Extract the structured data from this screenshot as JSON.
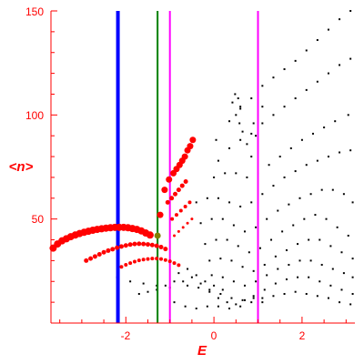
{
  "chart_data": {
    "type": "scatter",
    "title": "",
    "xlabel": "E",
    "ylabel": "<n>",
    "xlim": [
      -3.7,
      3.2
    ],
    "ylim": [
      0,
      150
    ],
    "x_ticks": [
      -2,
      0,
      2
    ],
    "y_ticks": [
      50,
      100,
      150
    ],
    "x_tick_labels": [
      "-2",
      "0",
      "2"
    ],
    "y_tick_labels": [
      "50",
      "100",
      "150"
    ],
    "axis_color": "#ff0000",
    "grid": false,
    "vertical_lines": [
      {
        "x": -2.18,
        "color": "#0000ff",
        "width": "thick"
      },
      {
        "x": -1.28,
        "color": "#008000",
        "width": "thin"
      },
      {
        "x": -1.0,
        "color": "#ff00ff",
        "width": "thin"
      },
      {
        "x": 1.0,
        "color": "#ff00ff",
        "width": "thin"
      }
    ],
    "marker": {
      "x": -1.28,
      "y": 42,
      "color": "#808000"
    },
    "red_series": [
      {
        "name": "",
        "color": "#ff0000",
        "points": [
          [
            -3.65,
            36
          ],
          [
            -3.55,
            38
          ],
          [
            -3.45,
            39.5
          ],
          [
            -3.35,
            40.5
          ],
          [
            -3.25,
            41.5
          ],
          [
            -3.15,
            42.3
          ],
          [
            -3.05,
            43
          ],
          [
            -2.95,
            43.6
          ],
          [
            -2.85,
            44.1
          ],
          [
            -2.75,
            44.6
          ],
          [
            -2.65,
            45
          ],
          [
            -2.55,
            45.3
          ],
          [
            -2.45,
            45.6
          ],
          [
            -2.35,
            45.8
          ],
          [
            -2.25,
            46
          ],
          [
            -2.15,
            46
          ],
          [
            -2.05,
            46
          ],
          [
            -1.95,
            45.8
          ],
          [
            -1.85,
            45.4
          ],
          [
            -1.75,
            45
          ],
          [
            -1.65,
            44.3
          ],
          [
            -1.55,
            43.3
          ],
          [
            -1.45,
            42.3
          ]
        ],
        "size": 4
      },
      {
        "name": "",
        "color": "#ff0000",
        "points": [
          [
            -2.9,
            30
          ],
          [
            -2.8,
            31
          ],
          [
            -2.7,
            32
          ],
          [
            -2.6,
            33
          ],
          [
            -2.5,
            34
          ],
          [
            -2.4,
            34.8
          ],
          [
            -2.3,
            35.5
          ],
          [
            -2.2,
            36.2
          ],
          [
            -2.1,
            36.8
          ],
          [
            -2.0,
            37.3
          ],
          [
            -1.9,
            37.7
          ],
          [
            -1.8,
            38
          ],
          [
            -1.7,
            38.1
          ],
          [
            -1.6,
            38
          ],
          [
            -1.5,
            37.8
          ],
          [
            -1.4,
            37.5
          ],
          [
            -1.3,
            37.1
          ],
          [
            -1.2,
            36.5
          ],
          [
            -1.1,
            35.6
          ]
        ],
        "size": 2.5
      },
      {
        "name": "",
        "color": "#ff0000",
        "points": [
          [
            -2.1,
            27
          ],
          [
            -2.0,
            28
          ],
          [
            -1.9,
            28.8
          ],
          [
            -1.8,
            29.5
          ],
          [
            -1.7,
            30.1
          ],
          [
            -1.6,
            30.5
          ],
          [
            -1.5,
            30.8
          ],
          [
            -1.4,
            31
          ],
          [
            -1.3,
            31
          ],
          [
            -1.2,
            30.8
          ],
          [
            -1.1,
            30.3
          ],
          [
            -1.0,
            29.7
          ],
          [
            -0.9,
            28.8
          ],
          [
            -0.8,
            27.8
          ]
        ],
        "size": 2
      },
      {
        "name": "",
        "color": "#ff0000",
        "points": [
          [
            -1.22,
            52
          ],
          [
            -1.12,
            64
          ],
          [
            -1.02,
            69
          ],
          [
            -0.92,
            72
          ],
          [
            -0.85,
            74
          ],
          [
            -0.78,
            76
          ],
          [
            -0.72,
            78
          ],
          [
            -0.66,
            80
          ],
          [
            -0.6,
            83
          ],
          [
            -0.54,
            85
          ],
          [
            -0.48,
            88
          ]
        ],
        "size": 3.5
      },
      {
        "name": "",
        "color": "#ff0000",
        "points": [
          [
            -1.05,
            58
          ],
          [
            -0.96,
            60
          ],
          [
            -0.88,
            62
          ],
          [
            -0.8,
            64
          ],
          [
            -0.72,
            66
          ],
          [
            -0.64,
            68
          ]
        ],
        "size": 2.5
      },
      {
        "name": "",
        "color": "#ff0000",
        "points": [
          [
            -0.95,
            50
          ],
          [
            -0.85,
            52
          ],
          [
            -0.75,
            54
          ],
          [
            -0.65,
            56
          ],
          [
            -0.55,
            58
          ]
        ],
        "size": 2
      },
      {
        "name": "",
        "color": "#ff0000",
        "points": [
          [
            -0.9,
            42
          ],
          [
            -0.8,
            44
          ],
          [
            -0.7,
            46
          ],
          [
            -0.6,
            48
          ],
          [
            -0.5,
            50
          ]
        ],
        "size": 1.5
      }
    ],
    "black_series": [
      {
        "name": "",
        "color": "#000000",
        "points": [
          [
            0.05,
            88
          ],
          [
            0.35,
            97
          ],
          [
            0.6,
            103
          ],
          [
            0.85,
            108
          ],
          [
            1.1,
            114
          ],
          [
            1.35,
            118
          ],
          [
            1.6,
            122
          ],
          [
            1.85,
            126
          ],
          [
            2.1,
            131
          ],
          [
            2.35,
            136
          ],
          [
            2.6,
            141
          ],
          [
            2.85,
            146
          ],
          [
            3.1,
            150
          ]
        ]
      },
      {
        "name": "",
        "color": "#000000",
        "points": [
          [
            0.1,
            78
          ],
          [
            0.35,
            84
          ],
          [
            0.6,
            88
          ],
          [
            0.85,
            91
          ],
          [
            1.1,
            96
          ],
          [
            1.35,
            100
          ],
          [
            1.6,
            104
          ],
          [
            1.85,
            108
          ],
          [
            2.1,
            112
          ],
          [
            2.35,
            116
          ],
          [
            2.6,
            120
          ],
          [
            2.85,
            124
          ],
          [
            3.1,
            127
          ]
        ]
      },
      {
        "name": "",
        "color": "#000000",
        "points": [
          [
            0.0,
            70
          ],
          [
            0.25,
            72
          ],
          [
            0.5,
            72
          ],
          [
            0.75,
            70
          ],
          [
            1.0,
            72
          ],
          [
            1.25,
            76
          ],
          [
            1.5,
            80
          ],
          [
            1.75,
            84
          ],
          [
            2.0,
            88
          ],
          [
            2.25,
            91
          ],
          [
            2.5,
            94
          ],
          [
            2.75,
            97
          ],
          [
            3.05,
            100
          ]
        ]
      },
      {
        "name": "",
        "color": "#000000",
        "points": [
          [
            -0.4,
            58
          ],
          [
            -0.15,
            60
          ],
          [
            0.1,
            60
          ],
          [
            0.35,
            58
          ],
          [
            0.6,
            56
          ],
          [
            0.85,
            58
          ],
          [
            1.1,
            62
          ],
          [
            1.35,
            66
          ],
          [
            1.6,
            70
          ],
          [
            1.85,
            73
          ],
          [
            2.1,
            76
          ],
          [
            2.35,
            78
          ],
          [
            2.6,
            80
          ],
          [
            2.85,
            82
          ],
          [
            3.1,
            83
          ]
        ]
      },
      {
        "name": "",
        "color": "#000000",
        "points": [
          [
            -0.3,
            48
          ],
          [
            -0.05,
            50
          ],
          [
            0.2,
            50
          ],
          [
            0.45,
            47
          ],
          [
            0.7,
            44
          ],
          [
            0.95,
            46
          ],
          [
            1.2,
            50
          ],
          [
            1.45,
            54
          ],
          [
            1.7,
            57
          ],
          [
            1.95,
            60
          ],
          [
            2.2,
            62
          ],
          [
            2.45,
            64
          ],
          [
            2.7,
            64
          ],
          [
            2.95,
            62
          ],
          [
            3.15,
            58
          ]
        ]
      },
      {
        "name": "",
        "color": "#000000",
        "points": [
          [
            -0.2,
            38
          ],
          [
            0.05,
            40
          ],
          [
            0.3,
            40
          ],
          [
            0.55,
            37
          ],
          [
            0.8,
            34
          ],
          [
            1.05,
            36
          ],
          [
            1.3,
            40
          ],
          [
            1.55,
            44
          ],
          [
            1.8,
            47
          ],
          [
            2.05,
            50
          ],
          [
            2.3,
            52
          ],
          [
            2.55,
            50
          ],
          [
            2.8,
            46
          ],
          [
            3.05,
            42
          ]
        ]
      },
      {
        "name": "",
        "color": "#000000",
        "points": [
          [
            -0.1,
            30
          ],
          [
            0.15,
            31
          ],
          [
            0.4,
            30
          ],
          [
            0.65,
            27
          ],
          [
            0.9,
            25
          ],
          [
            1.15,
            28
          ],
          [
            1.4,
            32
          ],
          [
            1.65,
            35
          ],
          [
            1.9,
            38
          ],
          [
            2.15,
            40
          ],
          [
            2.4,
            40
          ],
          [
            2.65,
            37
          ],
          [
            2.9,
            34
          ],
          [
            3.15,
            31
          ]
        ]
      },
      {
        "name": "",
        "color": "#000000",
        "points": [
          [
            -0.05,
            23
          ],
          [
            0.2,
            22
          ],
          [
            0.45,
            20
          ],
          [
            0.7,
            18
          ],
          [
            0.95,
            20
          ],
          [
            1.2,
            23
          ],
          [
            1.45,
            26
          ],
          [
            1.7,
            28
          ],
          [
            1.95,
            30
          ],
          [
            2.2,
            30
          ],
          [
            2.45,
            28
          ],
          [
            2.7,
            26
          ],
          [
            2.95,
            24
          ],
          [
            3.15,
            22
          ]
        ]
      },
      {
        "name": "",
        "color": "#000000",
        "points": [
          [
            -0.6,
            18
          ],
          [
            -0.35,
            17
          ],
          [
            -0.1,
            16
          ],
          [
            0.15,
            14
          ],
          [
            0.4,
            12
          ],
          [
            0.65,
            11
          ],
          [
            0.9,
            13
          ],
          [
            1.15,
            16
          ],
          [
            1.4,
            19
          ],
          [
            1.65,
            21
          ],
          [
            1.9,
            22
          ],
          [
            2.15,
            22
          ],
          [
            2.4,
            20
          ],
          [
            2.65,
            18
          ],
          [
            2.9,
            16
          ],
          [
            3.15,
            14
          ]
        ]
      },
      {
        "name": "",
        "color": "#000000",
        "points": [
          [
            -0.9,
            10
          ],
          [
            -0.65,
            8
          ],
          [
            -0.4,
            7
          ],
          [
            -0.15,
            8
          ],
          [
            0.1,
            8
          ],
          [
            0.35,
            7
          ],
          [
            0.6,
            8
          ],
          [
            0.85,
            10
          ],
          [
            1.1,
            12
          ],
          [
            1.35,
            13
          ],
          [
            1.6,
            14
          ],
          [
            1.85,
            15
          ],
          [
            2.1,
            14
          ],
          [
            2.35,
            13
          ],
          [
            2.6,
            12
          ],
          [
            2.85,
            10
          ],
          [
            3.1,
            9
          ]
        ]
      },
      {
        "name": "",
        "color": "#000000",
        "points": [
          [
            -2.2,
            22
          ],
          [
            -1.9,
            20
          ],
          [
            -1.6,
            19
          ],
          [
            -1.3,
            18
          ],
          [
            -1.0,
            17
          ],
          [
            -0.7,
            20
          ],
          [
            -0.5,
            22
          ],
          [
            -0.3,
            19
          ],
          [
            -0.1,
            15
          ],
          [
            0.1,
            12
          ],
          [
            0.3,
            10
          ],
          [
            0.5,
            9
          ],
          [
            0.7,
            11
          ],
          [
            0.9,
            12
          ],
          [
            1.1,
            10
          ]
        ]
      },
      {
        "name": "",
        "color": "#000000",
        "points": [
          [
            -1.7,
            14
          ],
          [
            -1.5,
            15
          ],
          [
            -1.3,
            16
          ],
          [
            -1.1,
            18
          ],
          [
            -0.9,
            20
          ],
          [
            -0.8,
            24
          ],
          [
            -0.6,
            26
          ],
          [
            -0.4,
            23
          ],
          [
            -0.2,
            20
          ],
          [
            0.0,
            18
          ],
          [
            0.2,
            16
          ]
        ]
      },
      {
        "name": "",
        "color": "#000000",
        "points": [
          [
            0.6,
            104
          ],
          [
            0.55,
            108
          ],
          [
            0.48,
            110
          ],
          [
            0.42,
            106
          ],
          [
            0.5,
            100
          ],
          [
            0.58,
            96
          ],
          [
            0.65,
            92
          ],
          [
            0.75,
            86
          ],
          [
            0.85,
            80
          ]
        ]
      },
      {
        "name": "",
        "color": "#000000",
        "points": [
          [
            1.1,
            104
          ],
          [
            1.0,
            100
          ],
          [
            0.9,
            96
          ],
          [
            0.95,
            90
          ]
        ]
      }
    ]
  }
}
